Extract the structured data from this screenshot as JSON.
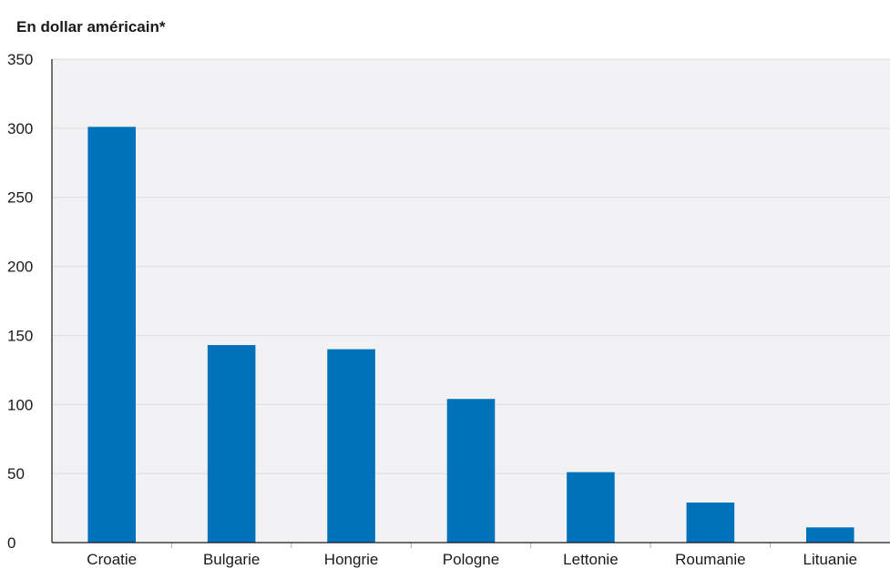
{
  "chart_data": {
    "type": "bar",
    "title": "",
    "unit_label": "En dollar américain*",
    "xlabel": "",
    "ylabel": "",
    "categories": [
      "Croatie",
      "Bulgarie",
      "Hongrie",
      "Pologne",
      "Lettonie",
      "Roumanie",
      "Lituanie"
    ],
    "series": [
      {
        "values": [
          301,
          143,
          140,
          104,
          51,
          29,
          11
        ]
      }
    ],
    "ylim": [
      0,
      350
    ],
    "yticks": [
      0,
      50,
      100,
      150,
      200,
      250,
      300,
      350
    ],
    "grid": true,
    "legend": "none",
    "colors": {
      "bar": "#0072bc",
      "plot_background": "#f2f2f4",
      "grid": "#dcdcdc",
      "axis": "#1a1a1a"
    }
  }
}
